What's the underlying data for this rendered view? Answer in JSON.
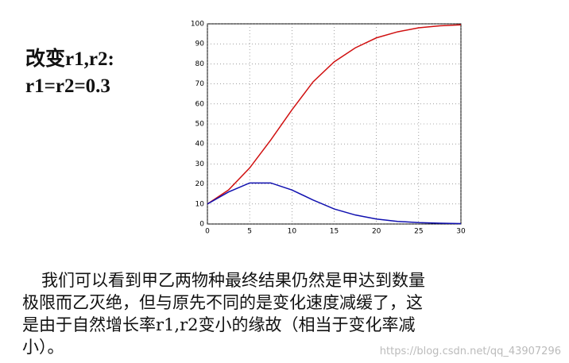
{
  "heading": [
    "改变r1,r2:",
    "r1=r2=0.3"
  ],
  "chart_data": {
    "type": "line",
    "x": [
      0,
      2.5,
      5,
      7.5,
      10,
      12.5,
      15,
      17.5,
      20,
      22.5,
      25,
      27.5,
      30
    ],
    "series": [
      {
        "color": "#d01010",
        "values": [
          10,
          17,
          28,
          42,
          57,
          71,
          81,
          88,
          93,
          96,
          98,
          99,
          99.5
        ]
      },
      {
        "color": "#1010b0",
        "values": [
          10,
          16,
          20.5,
          20.5,
          17,
          12,
          7.5,
          4.5,
          2.5,
          1.3,
          0.7,
          0.4,
          0.2
        ]
      }
    ],
    "xlim": [
      0,
      30
    ],
    "xticks": [
      0,
      5,
      10,
      15,
      20,
      25,
      30
    ],
    "ylim": [
      0,
      100
    ],
    "yticks": [
      0,
      10,
      20,
      30,
      40,
      50,
      60,
      70,
      80,
      90,
      100
    ],
    "grid": true
  },
  "paragraph": [
    "我们可以看到甲乙两物种最终结果仍然是甲达到数量",
    "极限而乙灭绝，但与原先不同的是变化速度减缓了，这",
    "是由于自然增长率r1,r2变小的缘故（相当于变化率减",
    "小）。"
  ],
  "watermark": "https://blog.csdn.net/qq_43907296"
}
